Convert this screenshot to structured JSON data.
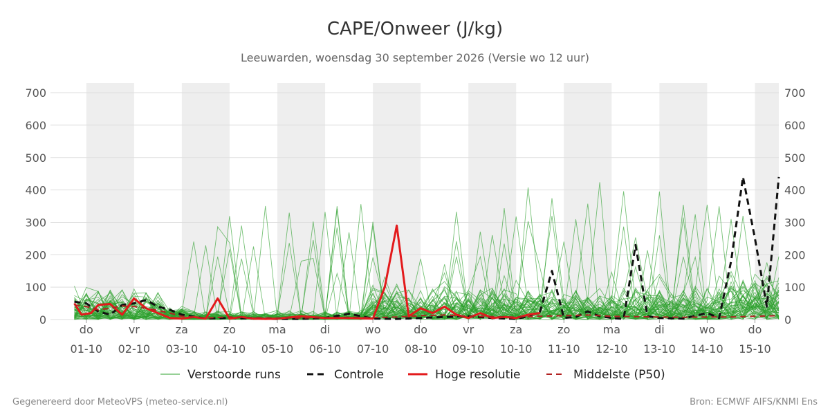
{
  "header": {
    "title": "CAPE/Onweer (J/kg)",
    "subtitle": "Leeuwarden, woensdag 30 september 2026 (Versie wo 12 uur)"
  },
  "footer": {
    "left": "Gegenereerd door MeteoVPS (meteo-service.nl)",
    "right": "Bron: ECMWF AIFS/KNMI Ens"
  },
  "colors": {
    "ensemble": "#2ca02c",
    "control": "#111111",
    "hires": "#e31a1c",
    "median": "#b22222",
    "weekend_band": "#eeeeee",
    "grid": "#dddddd"
  },
  "chart_data": {
    "type": "line",
    "x_unit": "days from 01-10 00h",
    "xlim": [
      -0.75,
      14.5
    ],
    "ylim": [
      0,
      730
    ],
    "y_ticks": [
      0,
      100,
      200,
      300,
      400,
      500,
      600,
      700
    ],
    "grid": true,
    "legend_position": "bottom",
    "day_labels": [
      {
        "weekday": "do",
        "date": "01-10"
      },
      {
        "weekday": "vr",
        "date": "02-10"
      },
      {
        "weekday": "za",
        "date": "03-10"
      },
      {
        "weekday": "zo",
        "date": "04-10"
      },
      {
        "weekday": "ma",
        "date": "05-10"
      },
      {
        "weekday": "di",
        "date": "06-10"
      },
      {
        "weekday": "wo",
        "date": "07-10"
      },
      {
        "weekday": "do",
        "date": "08-10"
      },
      {
        "weekday": "vr",
        "date": "09-10"
      },
      {
        "weekday": "za",
        "date": "10-10"
      },
      {
        "weekday": "zo",
        "date": "11-10"
      },
      {
        "weekday": "ma",
        "date": "12-10"
      },
      {
        "weekday": "di",
        "date": "13-10"
      },
      {
        "weekday": "wo",
        "date": "14-10"
      },
      {
        "weekday": "do",
        "date": "15-10"
      }
    ],
    "legend": [
      {
        "key": "ensemble",
        "label": "Verstoorde runs"
      },
      {
        "key": "control",
        "label": "Controle"
      },
      {
        "key": "hires",
        "label": "Hoge resolutie"
      },
      {
        "key": "median",
        "label": "Middelste (P50)"
      }
    ],
    "series": [
      {
        "name": "Controle",
        "x": [
          -0.25,
          0,
          0.25,
          0.5,
          0.75,
          1.0,
          1.25,
          1.5,
          1.75,
          2.0,
          2.5,
          3.0,
          3.5,
          4.0,
          4.5,
          5.0,
          5.5,
          6.0,
          6.5,
          7.0,
          7.5,
          8.0,
          8.5,
          9.0,
          9.25,
          9.5,
          9.75,
          10.0,
          10.25,
          10.5,
          10.75,
          11.0,
          11.25,
          11.5,
          11.75,
          12.0,
          12.5,
          13.0,
          13.25,
          13.5,
          13.75,
          14.0,
          14.25,
          14.5
        ],
        "y": [
          55,
          50,
          25,
          15,
          45,
          50,
          60,
          40,
          30,
          15,
          3,
          5,
          3,
          2,
          2,
          5,
          18,
          3,
          2,
          5,
          8,
          10,
          5,
          2,
          10,
          25,
          150,
          5,
          8,
          25,
          10,
          5,
          2,
          230,
          10,
          5,
          3,
          20,
          5,
          180,
          440,
          250,
          40,
          440
        ]
      },
      {
        "name": "Hoge resolutie",
        "x": [
          -0.25,
          -0.1,
          0.1,
          0.25,
          0.5,
          0.75,
          1.0,
          1.25,
          1.5,
          1.75,
          2.0,
          2.25,
          2.5,
          2.75,
          3.0,
          3.25,
          3.5,
          3.75,
          4.0,
          4.5,
          5.0,
          5.5,
          6.0,
          6.25,
          6.5,
          6.75,
          7.0,
          7.25,
          7.5,
          7.75,
          8.0,
          8.25,
          8.5,
          8.75,
          9.0,
          9.25,
          9.5
        ],
        "y": [
          50,
          15,
          20,
          45,
          48,
          15,
          65,
          35,
          20,
          5,
          3,
          8,
          3,
          65,
          3,
          8,
          3,
          2,
          3,
          10,
          5,
          5,
          3,
          100,
          290,
          10,
          35,
          20,
          40,
          15,
          5,
          20,
          5,
          8,
          5,
          15,
          20
        ]
      },
      {
        "name": "Middelste (P50)",
        "x": [
          -0.25,
          0,
          0.25,
          0.5,
          0.75,
          1.0,
          1.25,
          1.5,
          1.75,
          2.0,
          2.5,
          3.0,
          3.5,
          4.0,
          4.5,
          5.0,
          5.5,
          6.0,
          6.5,
          7.0,
          7.5,
          8.0,
          8.5,
          9.0,
          9.5,
          10.0,
          10.5,
          11.0,
          11.5,
          12.0,
          12.5,
          13.0,
          13.5,
          14.0,
          14.5
        ],
        "y": [
          45,
          40,
          30,
          35,
          42,
          40,
          35,
          28,
          20,
          10,
          5,
          8,
          6,
          5,
          5,
          6,
          7,
          6,
          8,
          12,
          14,
          10,
          9,
          8,
          10,
          12,
          14,
          10,
          9,
          8,
          7,
          8,
          8,
          10,
          12
        ]
      }
    ]
  }
}
